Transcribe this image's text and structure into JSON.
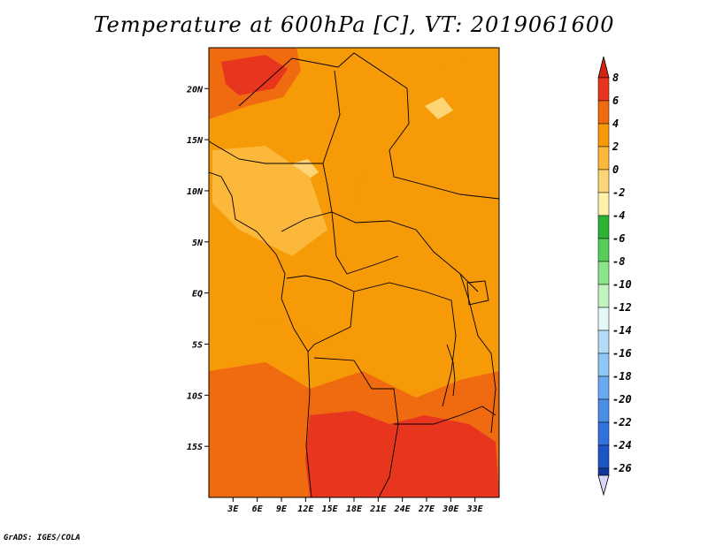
{
  "title": "Temperature at 600hPa [C], VT: 2019061600",
  "credit": "GrADS: IGES/COLA",
  "map": {
    "lon_range": [
      0,
      36
    ],
    "lat_range": [
      -20,
      24
    ],
    "lat_ticks": [
      {
        "value": 20,
        "label": "20N"
      },
      {
        "value": 15,
        "label": "15N"
      },
      {
        "value": 10,
        "label": "10N"
      },
      {
        "value": 5,
        "label": "5N"
      },
      {
        "value": 0,
        "label": "EQ"
      },
      {
        "value": -5,
        "label": "5S"
      },
      {
        "value": -10,
        "label": "10S"
      },
      {
        "value": -15,
        "label": "15S"
      }
    ],
    "lon_ticks": [
      {
        "value": 3,
        "label": "3E"
      },
      {
        "value": 6,
        "label": "6E"
      },
      {
        "value": 9,
        "label": "9E"
      },
      {
        "value": 12,
        "label": "12E"
      },
      {
        "value": 15,
        "label": "15E"
      },
      {
        "value": 18,
        "label": "18E"
      },
      {
        "value": 21,
        "label": "21E"
      },
      {
        "value": 24,
        "label": "24E"
      },
      {
        "value": 27,
        "label": "27E"
      },
      {
        "value": 30,
        "label": "30E"
      },
      {
        "value": 33,
        "label": "33E"
      }
    ]
  },
  "colorbar": {
    "levels": [
      "8",
      "6",
      "4",
      "2",
      "0",
      "-2",
      "-4",
      "-6",
      "-8",
      "-10",
      "-12",
      "-14",
      "-16",
      "-18",
      "-20",
      "-22",
      "-24",
      "-26"
    ],
    "colors": [
      "#e8351e",
      "#f06a10",
      "#f79a08",
      "#fbb83a",
      "#fdd576",
      "#fdf2a8",
      "#2db234",
      "#57cc5a",
      "#8be489",
      "#c3f4c0",
      "#e4f8f8",
      "#b4dcf6",
      "#8ec6f4",
      "#6aaaf0",
      "#4c8ee6",
      "#3272de",
      "#1c56c6",
      "#10389c"
    ],
    "top_color": "#d32312",
    "bottom_color": "#d6d6f6"
  },
  "field_colors": {
    "t6": "#e8351e",
    "t4": "#f06a10",
    "t2": "#f79a08",
    "t0": "#fbb83a",
    "tm2": "#fdd576"
  }
}
